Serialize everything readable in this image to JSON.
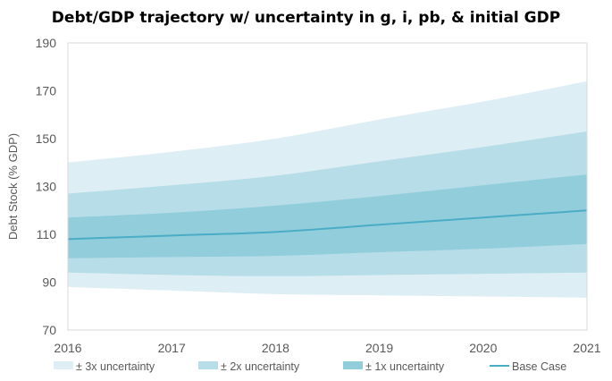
{
  "chart_data": {
    "type": "area",
    "title": "Debt/GDP trajectory w/ uncertainty in g, i, pb, & initial GDP",
    "xlabel": "",
    "ylabel": "Debt Stock (% GDP)",
    "x": [
      2016,
      2017,
      2018,
      2019,
      2020,
      2021
    ],
    "xlim": [
      2016,
      2021
    ],
    "ylim": [
      70,
      190
    ],
    "yticks": [
      70,
      90,
      110,
      130,
      150,
      170,
      190
    ],
    "grid": false,
    "legend_position": "bottom",
    "bands": [
      {
        "name": "± 3x uncertainty",
        "color": "#ddeef4",
        "lower": [
          88,
          86.5,
          85,
          84.5,
          84,
          83.5
        ],
        "upper": [
          140,
          144.5,
          150,
          158,
          165.5,
          174
        ]
      },
      {
        "name": "± 2x uncertainty",
        "color": "#b6dde8",
        "lower": [
          94,
          93,
          92.5,
          93,
          93.5,
          94
        ],
        "upper": [
          127,
          130.5,
          134.5,
          140.5,
          146.5,
          153
        ]
      },
      {
        "name": "± 1x uncertainty",
        "color": "#92cddc",
        "lower": [
          100,
          100.5,
          101,
          102.5,
          104,
          106
        ],
        "upper": [
          117,
          119,
          122,
          126,
          130.5,
          135
        ]
      }
    ],
    "series": [
      {
        "name": "Base Case",
        "color": "#4bacc6",
        "values": [
          108,
          109.5,
          111,
          114,
          117,
          120
        ]
      }
    ]
  }
}
